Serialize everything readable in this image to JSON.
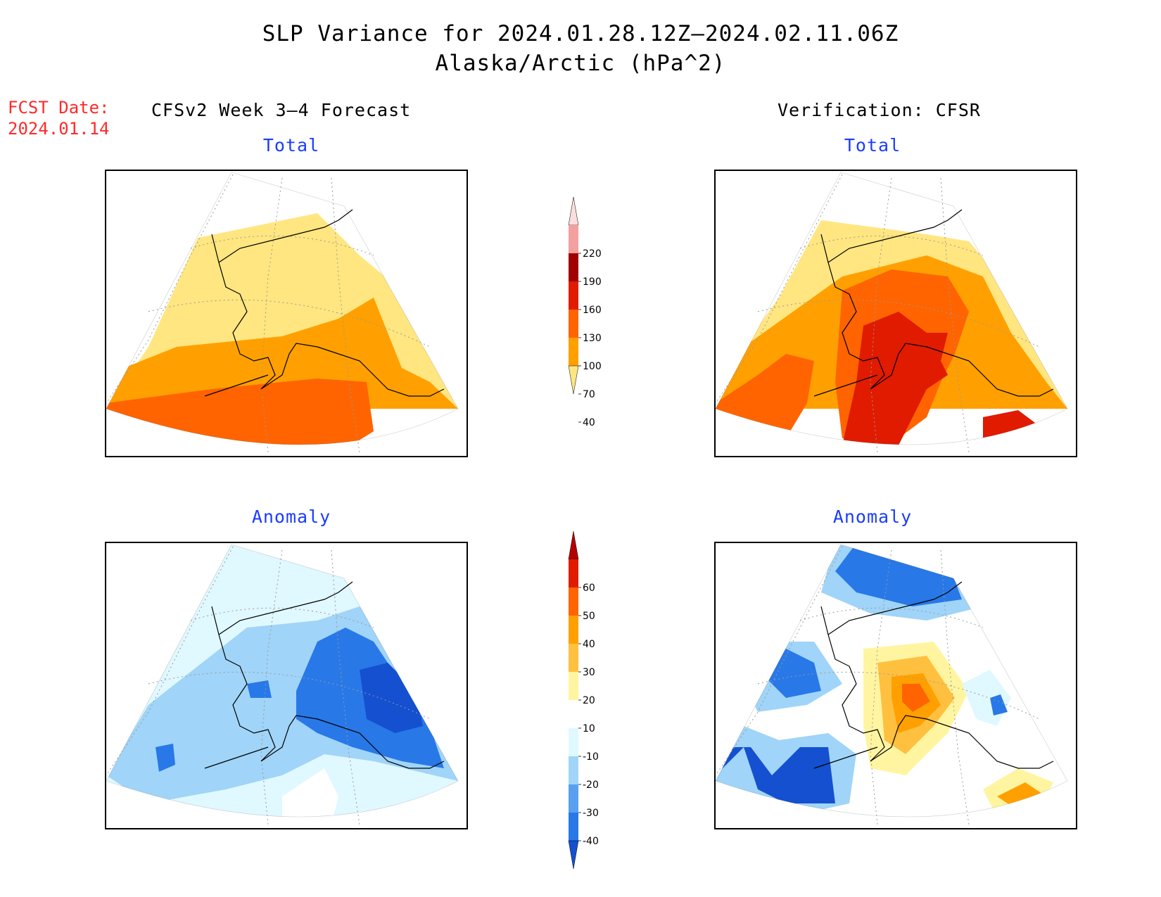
{
  "header": {
    "title_line1": "SLP Variance for 2024.01.28.12Z–2024.02.11.06Z",
    "title_line2": "Alaska/Arctic (hPa^2)",
    "fcst_date_label": "FCST Date:",
    "fcst_date_value": "2024.01.14",
    "left_heading": "CFSv2 Week 3–4 Forecast",
    "right_heading": "Verification: CFSR"
  },
  "panels": {
    "forecast_total_title": "Total",
    "verification_total_title": "Total",
    "forecast_anomaly_title": "Anomaly",
    "verification_anomaly_title": "Anomaly"
  },
  "colorbar_total": {
    "labels": [
      "220",
      "190",
      "160",
      "130",
      "100",
      "70",
      "40"
    ],
    "colors": [
      "#fcdede",
      "#f4a0a0",
      "#a00000",
      "#e01b00",
      "#ff6400",
      "#ffa000",
      "#ffe680"
    ]
  },
  "colorbar_anomaly": {
    "labels": [
      "60",
      "50",
      "40",
      "30",
      "20",
      "10",
      "-10",
      "-20",
      "-30",
      "-40"
    ],
    "colors": [
      "#b40000",
      "#e01b00",
      "#ff6400",
      "#ffa000",
      "#ffc040",
      "#fff5a0",
      "#ffffff",
      "#e0f8ff",
      "#a0d4f8",
      "#5aa0f0",
      "#2878e8",
      "#1450d0"
    ]
  },
  "palette": {
    "yellow": "#ffe680",
    "orange": "#ffa000",
    "dark_orange": "#ff6400",
    "red": "#e01b00",
    "pale_blue": "#e0f8ff",
    "light_blue": "#a0d4f8",
    "blue": "#2878e8",
    "dark_blue": "#1450d0",
    "pale_yellow": "#fff5a0",
    "light_orange": "#ffc040"
  }
}
